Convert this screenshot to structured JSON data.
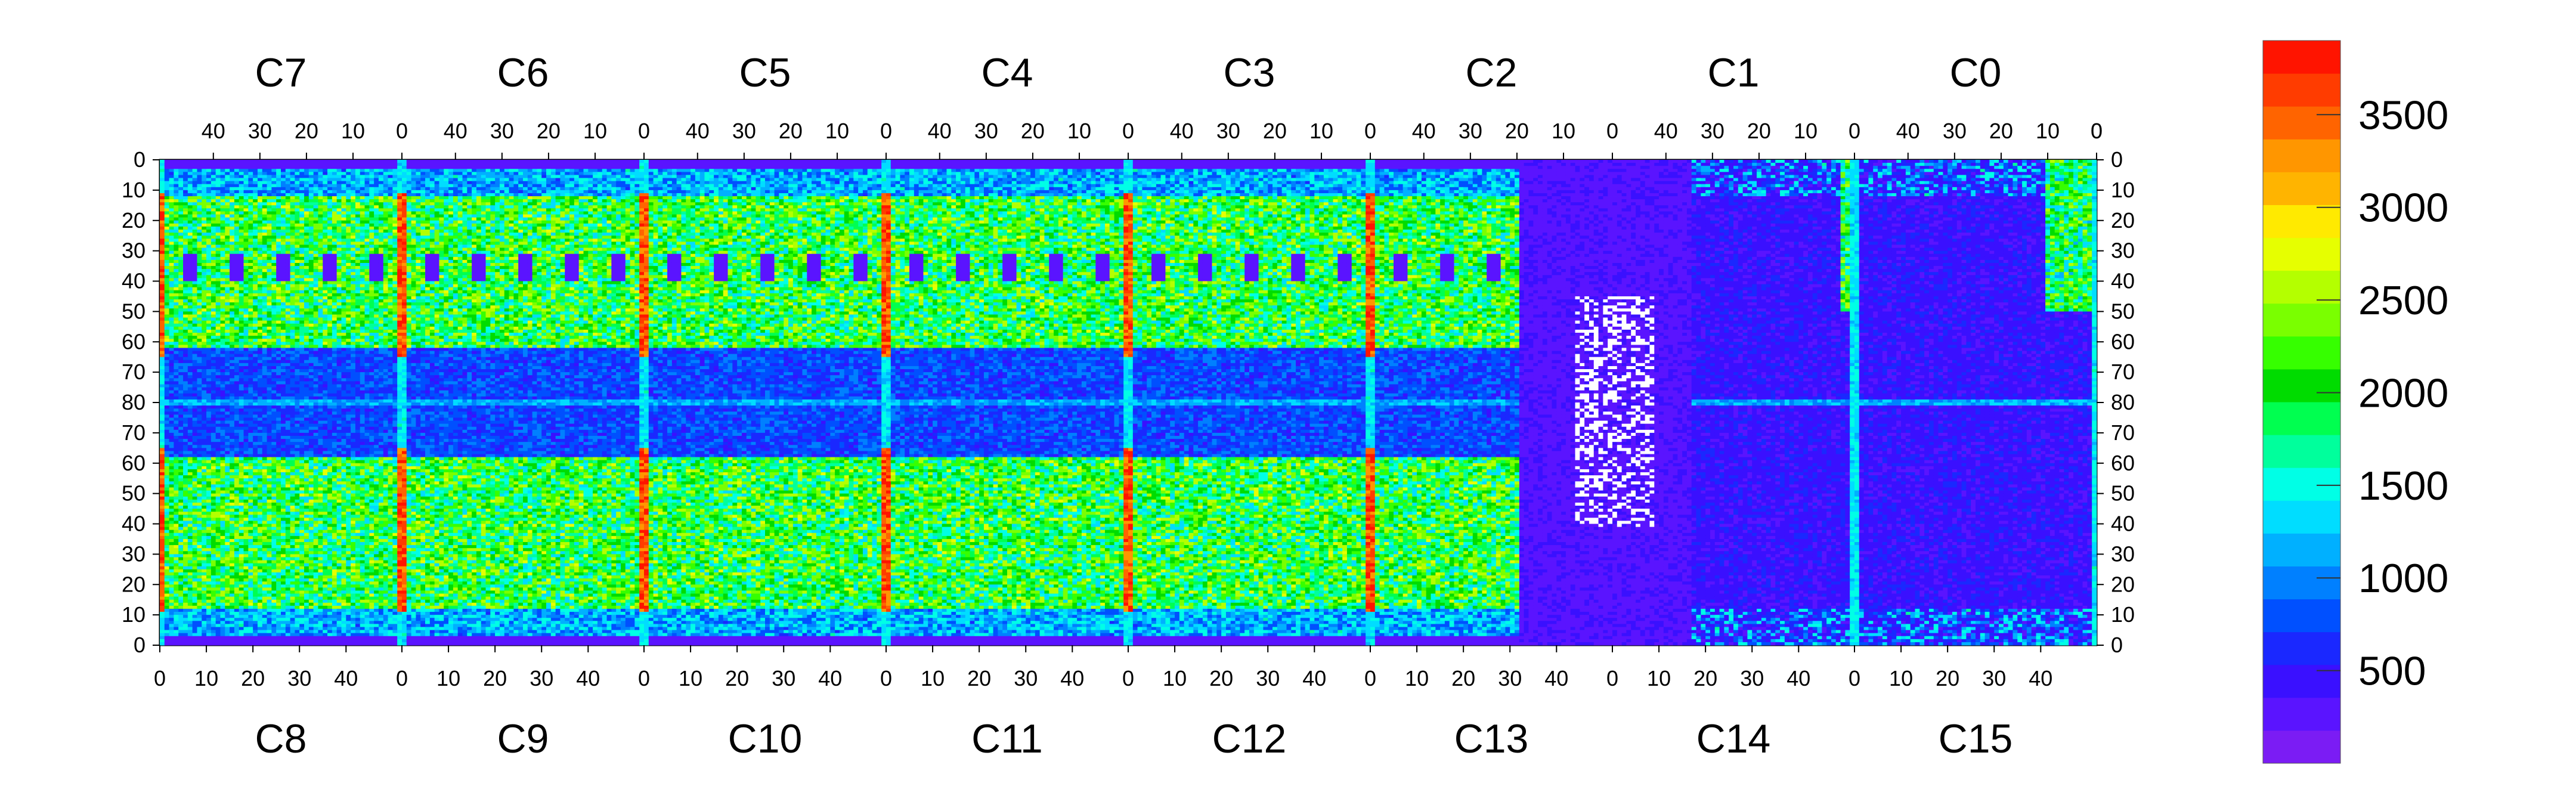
{
  "chart_data": {
    "type": "heatmap",
    "title": "",
    "xlabel": "",
    "ylabel": "",
    "top_chip_labels": [
      "C7",
      "C6",
      "C5",
      "C4",
      "C3",
      "C2",
      "C1",
      "C0"
    ],
    "bottom_chip_labels": [
      "C8",
      "C9",
      "C10",
      "C11",
      "C12",
      "C13",
      "C14",
      "C15"
    ],
    "top_axis_ticks": [
      "40",
      "30",
      "20",
      "10",
      "0"
    ],
    "bottom_axis_ticks": [
      "0",
      "10",
      "20",
      "30",
      "40"
    ],
    "y_axis_ticks": [
      "0",
      "10",
      "20",
      "30",
      "40",
      "50",
      "60",
      "70",
      "80",
      "70",
      "60",
      "50",
      "40",
      "30",
      "20",
      "10",
      "0"
    ],
    "colorbar": {
      "range": [
        0,
        3900
      ],
      "ticks": [
        500,
        1000,
        1500,
        2000,
        2500,
        3000,
        3500
      ],
      "tick_labels": [
        "500",
        "1000",
        "1500",
        "2000",
        "2500",
        "3000",
        "3500"
      ],
      "colors": [
        "#7b1cf4",
        "#5a14ff",
        "#3a10ff",
        "#1a28ff",
        "#0050ff",
        "#0080ff",
        "#00b0ff",
        "#00ddff",
        "#00ffe6",
        "#00ff9c",
        "#00ff50",
        "#00dc00",
        "#36ff00",
        "#7aff00",
        "#b4ff00",
        "#e6ff00",
        "#ffea00",
        "#ffb400",
        "#ff9600",
        "#ff6400",
        "#ff3c00",
        "#ff1400"
      ]
    },
    "columns_per_chip": 52,
    "rows_per_half": 80,
    "approx_value_ranges": {
      "background_edges": "250-500",
      "dead_region_C13_C14": "0-300",
      "band_row_80": "800-1400",
      "upper_active_rows_10_60": "1200-2800",
      "chip_boundary_columns": "3200-3900"
    }
  }
}
